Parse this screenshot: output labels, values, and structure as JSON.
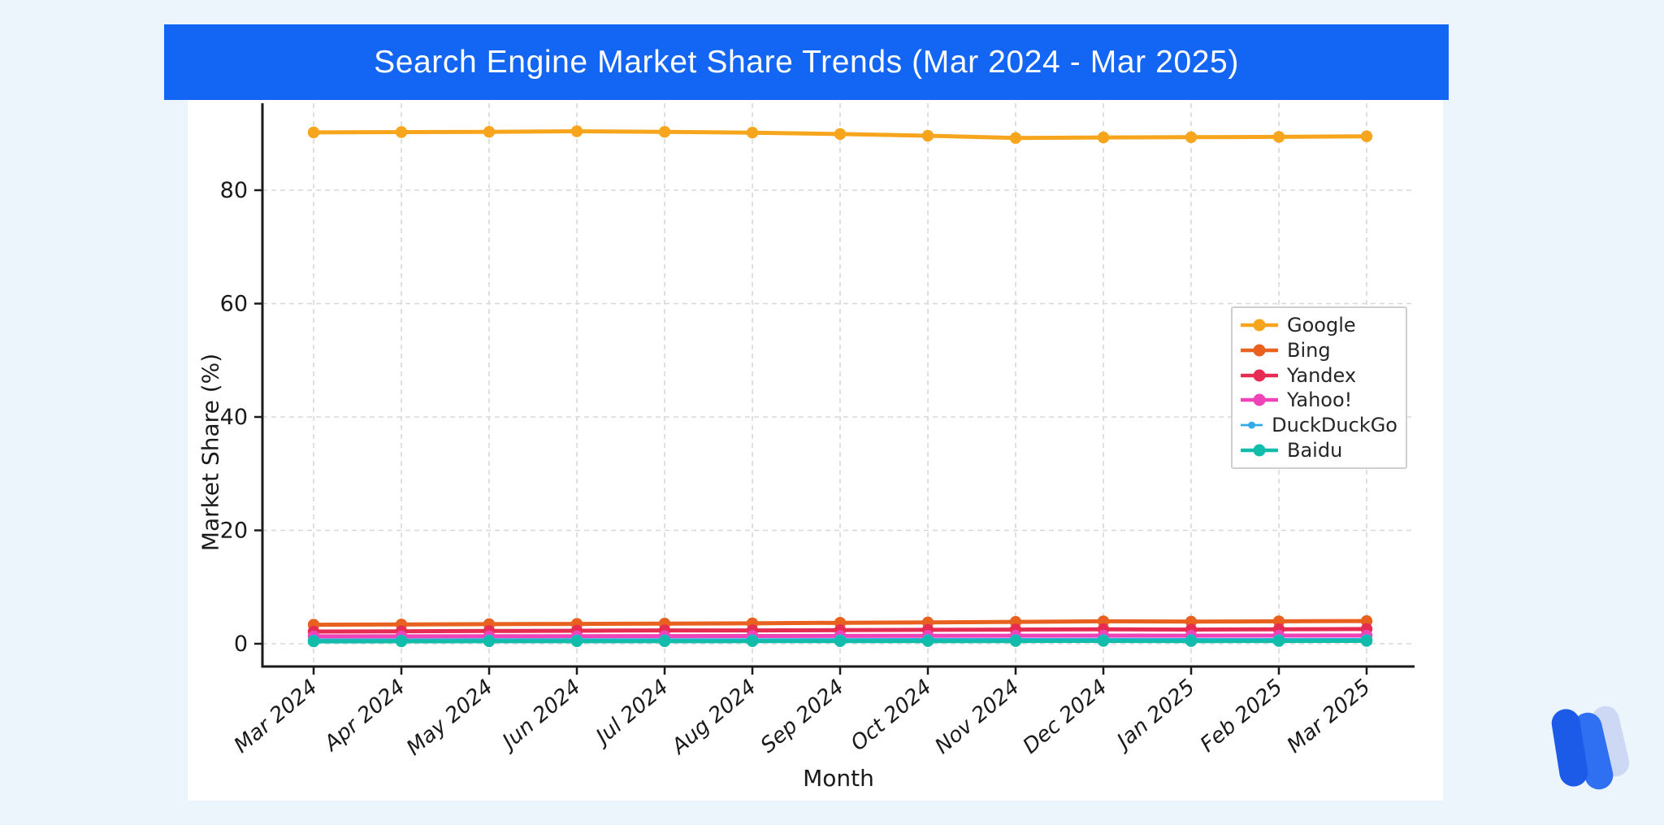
{
  "header": {
    "title": "Search Engine Market Share Trends (Mar 2024 - Mar 2025)"
  },
  "colors": {
    "page_bg": "#ecf4fc",
    "banner_bg": "#1366f4",
    "banner_text": "#ffffff",
    "panel_bg": "#ffffff",
    "grid": "#d8d8d8",
    "axis": "#1a1a1a",
    "tick_label": "#1a1a1a",
    "legend_border": "#cfcfcf",
    "logo_pill_left": "#1b5be8",
    "logo_pill_mid": "#2f6ff2",
    "logo_pill_light": "#cdd8f5"
  },
  "chart_data": {
    "type": "line",
    "title": "Search Engine Market Share Trends (Mar 2024 - Mar 2025)",
    "xlabel": "Month",
    "ylabel": "Market Share (%)",
    "categories": [
      "Mar 2024",
      "Apr 2024",
      "May 2024",
      "Jun 2024",
      "Jul 2024",
      "Aug 2024",
      "Sep 2024",
      "Oct 2024",
      "Nov 2024",
      "Dec 2024",
      "Jan 2025",
      "Feb 2025",
      "Mar 2025"
    ],
    "series": [
      {
        "name": "Google",
        "color": "#F6A51C",
        "values": [
          90.2,
          90.25,
          90.3,
          90.4,
          90.3,
          90.15,
          89.9,
          89.6,
          89.2,
          89.3,
          89.35,
          89.4,
          89.5
        ]
      },
      {
        "name": "Bing",
        "color": "#E8611E",
        "values": [
          3.35,
          3.4,
          3.45,
          3.5,
          3.55,
          3.6,
          3.7,
          3.75,
          3.85,
          3.95,
          3.9,
          3.95,
          4.0
        ]
      },
      {
        "name": "Yandex",
        "color": "#E62C52",
        "values": [
          2.15,
          2.2,
          2.25,
          2.3,
          2.35,
          2.35,
          2.4,
          2.45,
          2.5,
          2.55,
          2.5,
          2.55,
          2.6
        ]
      },
      {
        "name": "Yahoo!",
        "color": "#EF43B8",
        "values": [
          1.3,
          1.3,
          1.32,
          1.33,
          1.35,
          1.36,
          1.38,
          1.4,
          1.42,
          1.44,
          1.42,
          1.44,
          1.45
        ]
      },
      {
        "name": "DuckDuckGo",
        "color": "#33ABE8",
        "values": [
          0.58,
          0.58,
          0.6,
          0.6,
          0.62,
          0.62,
          0.63,
          0.64,
          0.65,
          0.66,
          0.64,
          0.65,
          0.66
        ]
      },
      {
        "name": "Baidu",
        "color": "#12BCAB",
        "values": [
          0.42,
          0.43,
          0.44,
          0.45,
          0.45,
          0.46,
          0.46,
          0.47,
          0.48,
          0.5,
          0.48,
          0.49,
          0.5
        ]
      }
    ],
    "yticks": [
      0,
      20,
      40,
      60,
      80
    ],
    "ylim": [
      -4.5,
      94.6
    ],
    "grid": true,
    "grid_style": "dashed",
    "x_tick_style": "italic, rotated 40deg",
    "legend_position": "center-right",
    "marker": "circle"
  }
}
